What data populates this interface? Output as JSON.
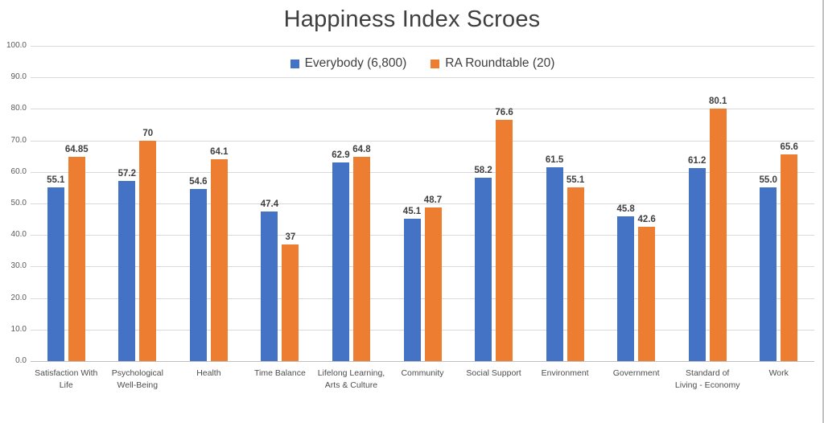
{
  "chart_data": {
    "type": "bar",
    "title": "Happiness Index Scroes",
    "categories": [
      "Satisfaction With Life",
      "Psychological Well-Being",
      "Health",
      "Time Balance",
      "Lifelong Learning, Arts & Culture",
      "Community",
      "Social Support",
      "Environment",
      "Government",
      "Standard of Living - Economy",
      "Work"
    ],
    "series": [
      {
        "name": "Everybody (6,800)",
        "color": "#4472C4",
        "values": [
          55.1,
          57.2,
          54.6,
          47.4,
          62.9,
          45.1,
          58.2,
          61.5,
          45.8,
          61.2,
          55.0
        ],
        "labels": [
          "55.1",
          "57.2",
          "54.6",
          "47.4",
          "62.9",
          "45.1",
          "58.2",
          "61.5",
          "45.8",
          "61.2",
          "55.0"
        ]
      },
      {
        "name": "RA Roundtable (20)",
        "color": "#ED7D31",
        "values": [
          64.85,
          70,
          64.1,
          37,
          64.8,
          48.7,
          76.6,
          55.1,
          42.6,
          80.1,
          65.6
        ],
        "labels": [
          "64.85",
          "70",
          "64.1",
          "37",
          "64.8",
          "48.7",
          "76.6",
          "55.1",
          "42.6",
          "80.1",
          "65.6"
        ]
      }
    ],
    "ylim": [
      0,
      100
    ],
    "ytick_step": 10,
    "ytick_labels": [
      "0.0",
      "10.0",
      "20.0",
      "30.0",
      "40.0",
      "50.0",
      "60.0",
      "70.0",
      "80.0",
      "90.0",
      "100.0"
    ],
    "grid": true,
    "legend_position": "top",
    "colors": {
      "gridline": "#d9d9d9",
      "axis_line": "#bfbfbf",
      "title_text": "#3f3f3f",
      "tick_text": "#595959"
    }
  }
}
